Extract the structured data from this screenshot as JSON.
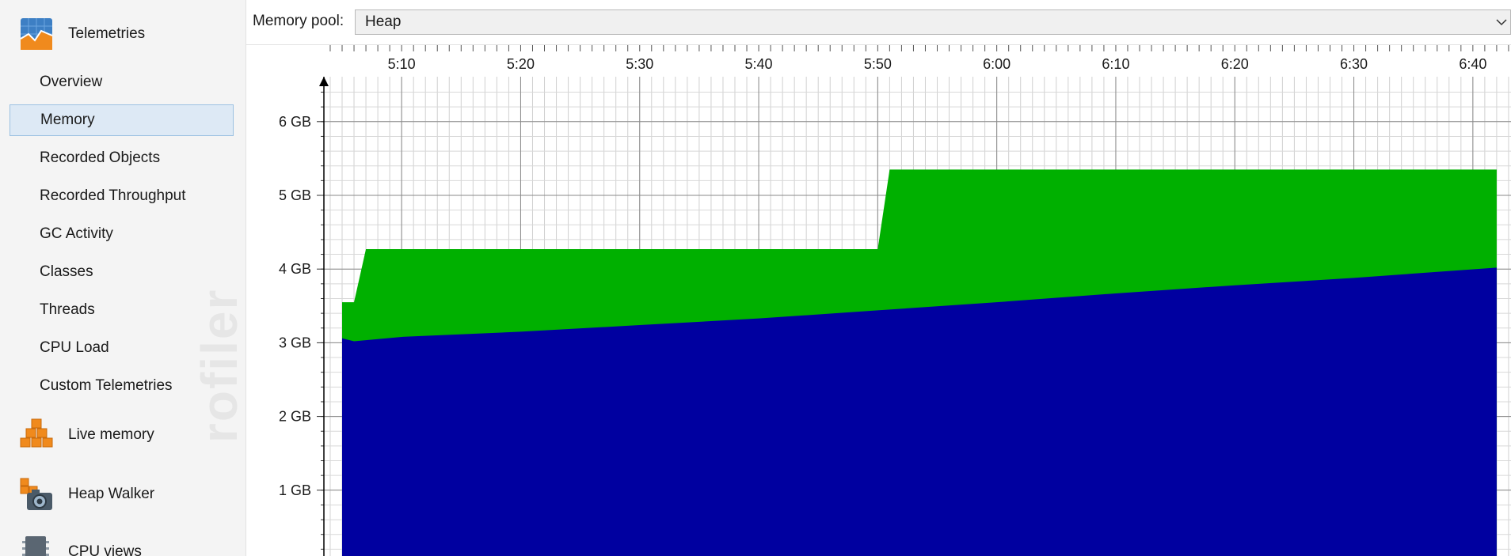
{
  "sidebar": {
    "sections": [
      {
        "label": "Telemetries",
        "icon": "telemetries-icon"
      },
      {
        "label": "Live memory",
        "icon": "live-memory-icon"
      },
      {
        "label": "Heap Walker",
        "icon": "heap-walker-icon"
      },
      {
        "label": "CPU views",
        "icon": "cpu-views-icon"
      }
    ],
    "items": [
      {
        "label": "Overview",
        "selected": false
      },
      {
        "label": "Memory",
        "selected": true
      },
      {
        "label": "Recorded Objects",
        "selected": false
      },
      {
        "label": "Recorded Throughput",
        "selected": false
      },
      {
        "label": "GC Activity",
        "selected": false
      },
      {
        "label": "Classes",
        "selected": false
      },
      {
        "label": "Threads",
        "selected": false
      },
      {
        "label": "CPU Load",
        "selected": false
      },
      {
        "label": "Custom Telemetries",
        "selected": false
      }
    ],
    "watermark": "rofiler"
  },
  "toolbar": {
    "pool_label": "Memory pool:",
    "pool_value": "Heap"
  },
  "chart_data": {
    "type": "area",
    "title": "",
    "xlabel": "",
    "ylabel": "",
    "x_ticks": [
      "5:10",
      "5:20",
      "5:30",
      "5:40",
      "5:50",
      "6:00",
      "6:10",
      "6:20",
      "6:30",
      "6:40"
    ],
    "y_ticks": [
      "1 GB",
      "2 GB",
      "3 GB",
      "4 GB",
      "5 GB",
      "6 GB"
    ],
    "xlim": [
      "5:05",
      "6:42"
    ],
    "ylim": [
      0,
      6.6
    ],
    "grid": true,
    "stacked": true,
    "series": [
      {
        "color": "#0000a0",
        "points": [
          [
            "5:05",
            3.06
          ],
          [
            "5:06",
            3.02
          ],
          [
            "5:10",
            3.08
          ],
          [
            "5:20",
            3.15
          ],
          [
            "5:30",
            3.24
          ],
          [
            "5:40",
            3.33
          ],
          [
            "5:50",
            3.44
          ],
          [
            "6:00",
            3.55
          ],
          [
            "6:10",
            3.67
          ],
          [
            "6:20",
            3.78
          ],
          [
            "6:30",
            3.88
          ],
          [
            "6:42",
            4.02
          ]
        ]
      },
      {
        "color": "#00b000",
        "points": [
          [
            "5:05",
            3.55
          ],
          [
            "5:06",
            3.55
          ],
          [
            "5:07",
            4.27
          ],
          [
            "5:50",
            4.27
          ],
          [
            "5:51",
            5.35
          ],
          [
            "6:42",
            5.35
          ]
        ]
      }
    ]
  }
}
